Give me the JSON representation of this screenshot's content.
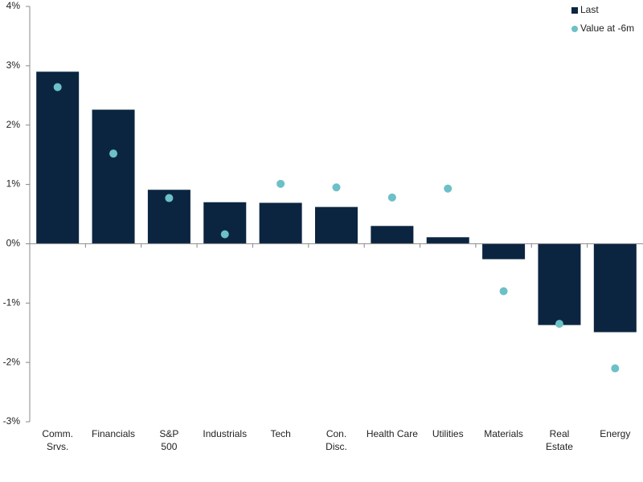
{
  "chart_data": {
    "type": "bar",
    "categories": [
      "Comm.\nSrvs.",
      "Financials",
      "S&P\n500",
      "Industrials",
      "Tech",
      "Con.\nDisc.",
      "Health Care",
      "Utilities",
      "Materials",
      "Real\nEstate",
      "Energy"
    ],
    "series": [
      {
        "name": "Last",
        "type": "bar",
        "color": "#0b2541",
        "values": [
          2.9,
          2.26,
          0.91,
          0.7,
          0.69,
          0.62,
          0.3,
          0.11,
          -0.26,
          -1.37,
          -1.49
        ]
      },
      {
        "name": "Value at -6m",
        "type": "scatter",
        "color": "#6cc0c8",
        "values": [
          2.64,
          1.52,
          0.77,
          0.16,
          1.01,
          0.95,
          0.78,
          0.93,
          -0.8,
          -1.35,
          -2.1
        ]
      }
    ],
    "ylim": [
      -3,
      4
    ],
    "yticks": [
      {
        "value": -3,
        "label": "-3%"
      },
      {
        "value": -2,
        "label": "-2%"
      },
      {
        "value": -1,
        "label": "-1%"
      },
      {
        "value": 0,
        "label": "0%"
      },
      {
        "value": 1,
        "label": "1%"
      },
      {
        "value": 2,
        "label": "2%"
      },
      {
        "value": 3,
        "label": "3%"
      },
      {
        "value": 4,
        "label": "4%"
      }
    ],
    "legend": "top-right"
  }
}
